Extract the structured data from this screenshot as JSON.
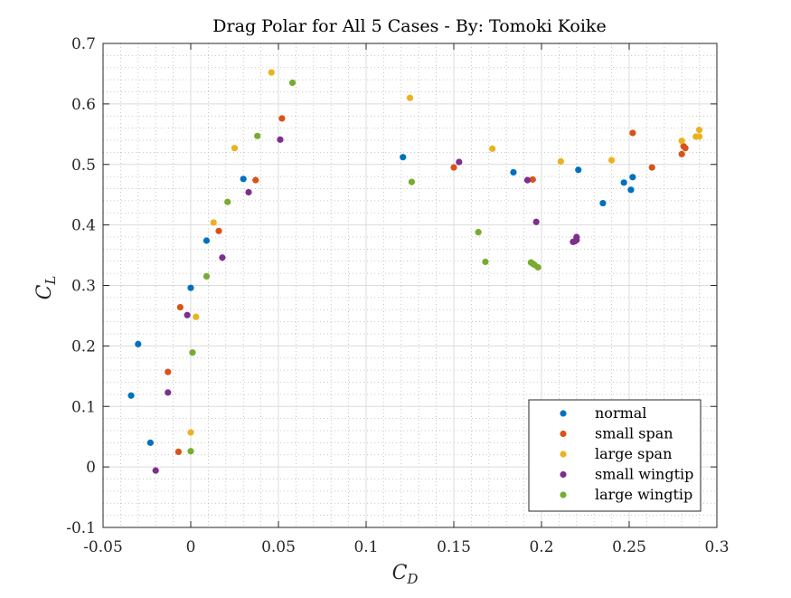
{
  "chart_data": {
    "type": "scatter",
    "title": "Drag Polar for All 5 Cases - By: Tomoki Koike",
    "xlabel": "C",
    "xlabel_sub": "D",
    "ylabel": "C",
    "ylabel_sub": "L",
    "xlim": [
      -0.05,
      0.3
    ],
    "ylim": [
      -0.1,
      0.7
    ],
    "xticks": [
      -0.05,
      0,
      0.05,
      0.1,
      0.15,
      0.2,
      0.25,
      0.3
    ],
    "xtick_labels": [
      "-0.05",
      "0",
      "0.05",
      "0.1",
      "0.15",
      "0.2",
      "0.25",
      "0.3"
    ],
    "yticks": [
      -0.1,
      0,
      0.1,
      0.2,
      0.3,
      0.4,
      0.5,
      0.6,
      0.7
    ],
    "ytick_labels": [
      "-0.1",
      "0",
      "0.1",
      "0.2",
      "0.3",
      "0.4",
      "0.5",
      "0.6",
      "0.7"
    ],
    "grid": true,
    "minor_grid": true,
    "legend_position": "bottom-right",
    "series": [
      {
        "name": "normal",
        "color": "#0072BD",
        "points": [
          [
            -0.034,
            0.118
          ],
          [
            -0.023,
            0.04
          ],
          [
            -0.03,
            0.203
          ],
          [
            0.0,
            0.296
          ],
          [
            0.009,
            0.374
          ],
          [
            0.03,
            0.476
          ],
          [
            0.121,
            0.512
          ],
          [
            0.184,
            0.487
          ],
          [
            0.221,
            0.491
          ],
          [
            0.235,
            0.436
          ],
          [
            0.247,
            0.47
          ],
          [
            0.251,
            0.458
          ],
          [
            0.252,
            0.479
          ]
        ]
      },
      {
        "name": "small span",
        "color": "#D95319",
        "points": [
          [
            -0.007,
            0.025
          ],
          [
            -0.013,
            0.157
          ],
          [
            -0.006,
            0.264
          ],
          [
            0.016,
            0.39
          ],
          [
            0.037,
            0.474
          ],
          [
            0.052,
            0.576
          ],
          [
            0.15,
            0.495
          ],
          [
            0.195,
            0.475
          ],
          [
            0.252,
            0.552
          ],
          [
            0.263,
            0.495
          ],
          [
            0.28,
            0.517
          ],
          [
            0.281,
            0.53
          ],
          [
            0.282,
            0.527
          ]
        ]
      },
      {
        "name": "large span",
        "color": "#EDB120",
        "points": [
          [
            0.0,
            0.057
          ],
          [
            0.003,
            0.248
          ],
          [
            0.013,
            0.404
          ],
          [
            0.025,
            0.527
          ],
          [
            0.046,
            0.652
          ],
          [
            0.125,
            0.61
          ],
          [
            0.172,
            0.526
          ],
          [
            0.211,
            0.505
          ],
          [
            0.24,
            0.507
          ],
          [
            0.28,
            0.539
          ],
          [
            0.288,
            0.546
          ],
          [
            0.29,
            0.546
          ],
          [
            0.29,
            0.557
          ]
        ]
      },
      {
        "name": "small wingtip",
        "color": "#7E2F8E",
        "points": [
          [
            -0.02,
            -0.006
          ],
          [
            -0.013,
            0.123
          ],
          [
            -0.002,
            0.251
          ],
          [
            0.018,
            0.346
          ],
          [
            0.033,
            0.454
          ],
          [
            0.051,
            0.541
          ],
          [
            0.153,
            0.504
          ],
          [
            0.192,
            0.474
          ],
          [
            0.197,
            0.405
          ],
          [
            0.218,
            0.372
          ],
          [
            0.22,
            0.375
          ],
          [
            0.22,
            0.38
          ],
          [
            0.219,
            0.373
          ]
        ]
      },
      {
        "name": "large wingtip",
        "color": "#77AC30",
        "points": [
          [
            0.0,
            0.026
          ],
          [
            0.001,
            0.189
          ],
          [
            0.009,
            0.315
          ],
          [
            0.021,
            0.438
          ],
          [
            0.038,
            0.547
          ],
          [
            0.058,
            0.635
          ],
          [
            0.126,
            0.471
          ],
          [
            0.164,
            0.388
          ],
          [
            0.168,
            0.339
          ],
          [
            0.194,
            0.338
          ],
          [
            0.195,
            0.336
          ],
          [
            0.196,
            0.334
          ],
          [
            0.198,
            0.33
          ]
        ]
      }
    ]
  }
}
